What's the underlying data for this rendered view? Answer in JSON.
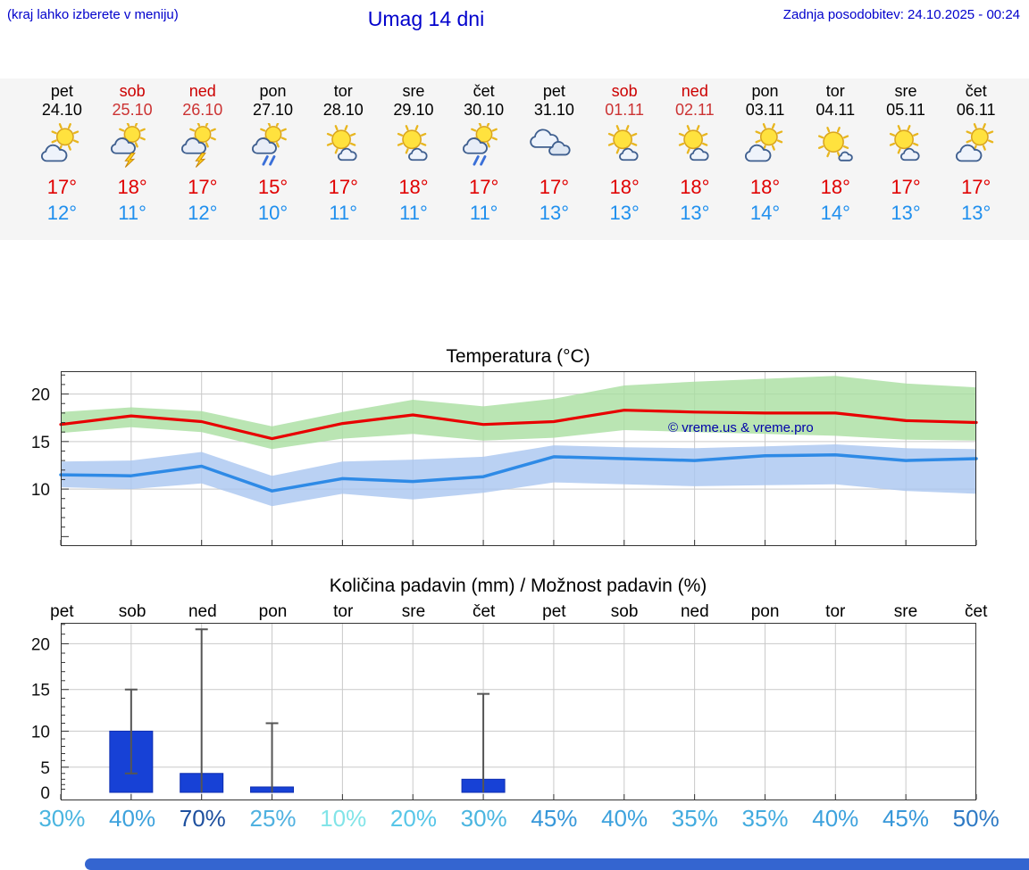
{
  "header": {
    "left_note": "(kraj lahko izberete v meniju)",
    "title": "Umag 14 dni",
    "updated": "Zadnja posodobitev: 24.10.2025 - 00:24"
  },
  "colors": {
    "header_blue": "#0000cc",
    "strip_bg": "#f5f5f5",
    "weekend_red": "#cc0000",
    "weekend_date_red": "#cc3333",
    "high_red": "#e00000",
    "low_blue": "#1f8fee",
    "line_red": "#e80000",
    "line_blue": "#2e8ae6",
    "band_green": "#a9dfa0",
    "band_blue": "#a9c6f0",
    "bar_blue": "#1741d6",
    "whisker_gray": "#555555",
    "watermark_blue": "#0000aa",
    "footer_bar": "#3465d0"
  },
  "forecast": {
    "days": [
      {
        "name": "pet",
        "date": "24.10",
        "weekend": false,
        "icon": "sun-cloud",
        "high": "17°",
        "low": "12°"
      },
      {
        "name": "sob",
        "date": "25.10",
        "weekend": true,
        "icon": "thunder",
        "high": "18°",
        "low": "11°"
      },
      {
        "name": "ned",
        "date": "26.10",
        "weekend": true,
        "icon": "thunder",
        "high": "17°",
        "low": "12°"
      },
      {
        "name": "pon",
        "date": "27.10",
        "weekend": false,
        "icon": "rain",
        "high": "15°",
        "low": "10°"
      },
      {
        "name": "tor",
        "date": "28.10",
        "weekend": false,
        "icon": "sun-small-cloud",
        "high": "17°",
        "low": "11°"
      },
      {
        "name": "sre",
        "date": "29.10",
        "weekend": false,
        "icon": "sun-small-cloud",
        "high": "18°",
        "low": "11°"
      },
      {
        "name": "čet",
        "date": "30.10",
        "weekend": false,
        "icon": "rain",
        "high": "17°",
        "low": "11°"
      },
      {
        "name": "pet",
        "date": "31.10",
        "weekend": false,
        "icon": "clouds",
        "high": "17°",
        "low": "13°"
      },
      {
        "name": "sob",
        "date": "01.11",
        "weekend": true,
        "icon": "sun-small-cloud",
        "high": "18°",
        "low": "13°"
      },
      {
        "name": "ned",
        "date": "02.11",
        "weekend": true,
        "icon": "sun-small-cloud",
        "high": "18°",
        "low": "13°"
      },
      {
        "name": "pon",
        "date": "03.11",
        "weekend": false,
        "icon": "sun-cloud",
        "high": "18°",
        "low": "14°"
      },
      {
        "name": "tor",
        "date": "04.11",
        "weekend": false,
        "icon": "sun",
        "high": "18°",
        "low": "14°"
      },
      {
        "name": "sre",
        "date": "05.11",
        "weekend": false,
        "icon": "sun-small-cloud",
        "high": "17°",
        "low": "13°"
      },
      {
        "name": "čet",
        "date": "06.11",
        "weekend": false,
        "icon": "sun-cloud",
        "high": "17°",
        "low": "13°"
      }
    ]
  },
  "chart_data": [
    {
      "type": "line",
      "title": "Temperatura (°C)",
      "x_labels": [
        "pet",
        "sob",
        "ned",
        "pon",
        "tor",
        "sre",
        "čet",
        "pet",
        "sob",
        "ned",
        "pon",
        "tor",
        "sre",
        "čet"
      ],
      "ylim": [
        4,
        22.4
      ],
      "yticks": [
        10,
        15,
        20
      ],
      "grid": true,
      "watermark": "© vreme.us & vreme.pro",
      "series": [
        {
          "name": "max-temp",
          "color": "#e80000",
          "values": [
            16.8,
            17.7,
            17.1,
            15.3,
            16.9,
            17.8,
            16.8,
            17.1,
            18.3,
            18.1,
            18.0,
            18.0,
            17.2,
            17.0
          ]
        },
        {
          "name": "min-temp",
          "color": "#2e8ae6",
          "values": [
            11.5,
            11.4,
            12.4,
            9.8,
            11.1,
            10.8,
            11.3,
            13.4,
            13.2,
            13.0,
            13.5,
            13.6,
            13.0,
            13.2
          ]
        }
      ],
      "bands": [
        {
          "name": "max-range",
          "color": "#a9dfa0",
          "upper": [
            18.1,
            18.6,
            18.2,
            16.6,
            18.1,
            19.4,
            18.7,
            19.5,
            20.9,
            21.3,
            21.6,
            21.9,
            21.1,
            20.7
          ],
          "lower": [
            15.9,
            16.5,
            16.0,
            14.2,
            15.3,
            15.8,
            15.1,
            15.4,
            16.2,
            16.0,
            15.8,
            15.6,
            15.2,
            15.1
          ]
        },
        {
          "name": "min-range",
          "color": "#a9c6f0",
          "upper": [
            12.9,
            13.0,
            13.9,
            11.4,
            12.9,
            13.1,
            13.4,
            14.6,
            14.4,
            14.3,
            14.5,
            14.7,
            14.3,
            14.2
          ],
          "lower": [
            10.2,
            10.0,
            10.6,
            8.2,
            9.5,
            8.9,
            9.6,
            10.7,
            10.5,
            10.3,
            10.4,
            10.5,
            9.8,
            9.5
          ]
        }
      ]
    },
    {
      "type": "bar",
      "title": "Količina padavin (mm) / Možnost padavin (%)",
      "categories": [
        "pet",
        "sob",
        "ned",
        "pon",
        "tor",
        "sre",
        "čet",
        "pet",
        "sob",
        "ned",
        "pon",
        "tor",
        "sre",
        "čet"
      ],
      "values": [
        0,
        10,
        4,
        1.5,
        0,
        0,
        3,
        0,
        0,
        0,
        0,
        0,
        0,
        0
      ],
      "whisker_top": [
        0,
        15,
        21.5,
        11,
        0,
        0,
        14.5,
        0,
        0,
        0,
        0,
        0,
        0,
        0
      ],
      "whisker_bottom": [
        0,
        4,
        0,
        0,
        0,
        0,
        0,
        0,
        0,
        0,
        0,
        0,
        0,
        0
      ],
      "bar_color": "#1741d6",
      "ylim": [
        0,
        24
      ],
      "yticks": [
        0,
        5,
        10,
        15,
        20
      ],
      "grid": true,
      "probabilities": [
        {
          "label": "30%",
          "color": "#4ab5e0"
        },
        {
          "label": "40%",
          "color": "#3da2dd"
        },
        {
          "label": "70%",
          "color": "#1d4f9e"
        },
        {
          "label": "25%",
          "color": "#4fb1e0"
        },
        {
          "label": "10%",
          "color": "#82e4e8"
        },
        {
          "label": "20%",
          "color": "#57c6e8"
        },
        {
          "label": "30%",
          "color": "#4ab5e0"
        },
        {
          "label": "45%",
          "color": "#3697d9"
        },
        {
          "label": "40%",
          "color": "#3da2dd"
        },
        {
          "label": "35%",
          "color": "#42abdf"
        },
        {
          "label": "35%",
          "color": "#42abdf"
        },
        {
          "label": "40%",
          "color": "#3da2dd"
        },
        {
          "label": "45%",
          "color": "#3697d9"
        },
        {
          "label": "50%",
          "color": "#2d79c4"
        }
      ]
    }
  ]
}
